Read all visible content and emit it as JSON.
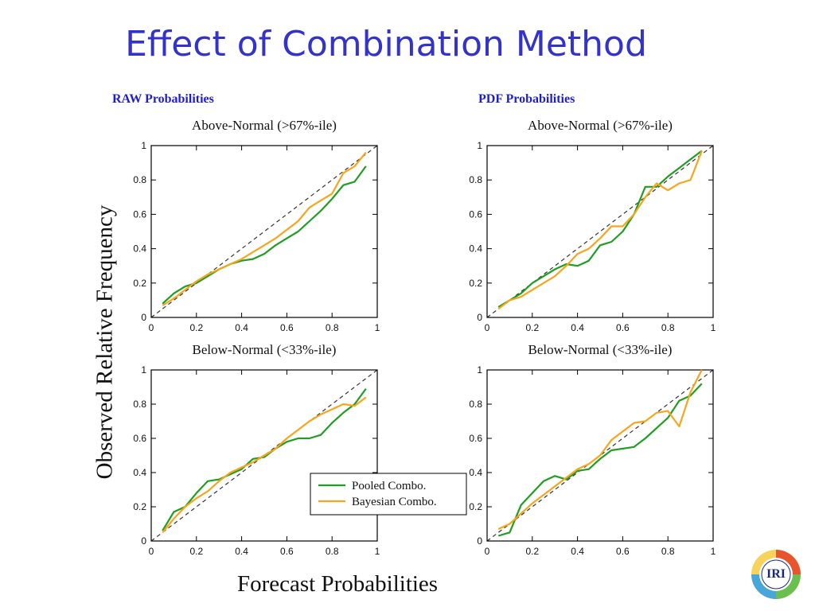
{
  "slide": {
    "title": "Effect of Combination Method"
  },
  "sections": {
    "left": "RAW Probabilities",
    "right": "PDF Probabilities"
  },
  "axes_labels": {
    "y": "Observed Relative Frequency",
    "x": "Forecast Probabilities"
  },
  "legend": {
    "pooled": "Pooled Combo.",
    "bayesian": "Bayesian Combo."
  },
  "colors": {
    "pooled": "#1f9e22",
    "bayesian": "#f7a51c",
    "diagonal": "#333333",
    "title": "#3333cc"
  },
  "logo": {
    "text": "IRI"
  },
  "chart_data": [
    {
      "type": "line",
      "title": "Above-Normal (>67%-ile)",
      "panel": "RAW Probabilities",
      "xlim": [
        0,
        1
      ],
      "ylim": [
        0,
        1
      ],
      "xticks": [
        "0",
        "0.2",
        "0.4",
        "0.6",
        "0.8",
        "1"
      ],
      "yticks": [
        "0",
        "0.2",
        "0.4",
        "0.6",
        "0.8",
        "1"
      ],
      "series": [
        {
          "name": "Pooled Combo.",
          "x": [
            0.05,
            0.1,
            0.15,
            0.2,
            0.25,
            0.3,
            0.35,
            0.4,
            0.45,
            0.5,
            0.55,
            0.6,
            0.65,
            0.7,
            0.75,
            0.8,
            0.85,
            0.9,
            0.95
          ],
          "y": [
            0.08,
            0.14,
            0.18,
            0.2,
            0.24,
            0.28,
            0.31,
            0.33,
            0.34,
            0.37,
            0.42,
            0.46,
            0.5,
            0.56,
            0.62,
            0.69,
            0.77,
            0.79,
            0.88
          ]
        },
        {
          "name": "Bayesian Combo.",
          "x": [
            0.05,
            0.1,
            0.15,
            0.2,
            0.25,
            0.3,
            0.35,
            0.4,
            0.45,
            0.5,
            0.55,
            0.6,
            0.65,
            0.7,
            0.75,
            0.8,
            0.85,
            0.9,
            0.95
          ],
          "y": [
            0.07,
            0.11,
            0.16,
            0.21,
            0.25,
            0.28,
            0.31,
            0.34,
            0.38,
            0.42,
            0.46,
            0.51,
            0.56,
            0.64,
            0.68,
            0.72,
            0.84,
            0.88,
            0.96
          ]
        }
      ]
    },
    {
      "type": "line",
      "title": "Above-Normal (>67%-ile)",
      "panel": "PDF Probabilities",
      "xlim": [
        0,
        1
      ],
      "ylim": [
        0,
        1
      ],
      "xticks": [
        "0",
        "0.2",
        "0.4",
        "0.6",
        "0.8",
        "1"
      ],
      "yticks": [
        "0",
        "0.2",
        "0.4",
        "0.6",
        "0.8",
        "1"
      ],
      "series": [
        {
          "name": "Pooled Combo.",
          "x": [
            0.05,
            0.1,
            0.15,
            0.2,
            0.25,
            0.3,
            0.35,
            0.4,
            0.45,
            0.5,
            0.55,
            0.6,
            0.65,
            0.7,
            0.75,
            0.8,
            0.85,
            0.9,
            0.95
          ],
          "y": [
            0.06,
            0.1,
            0.14,
            0.2,
            0.24,
            0.28,
            0.31,
            0.3,
            0.33,
            0.42,
            0.44,
            0.5,
            0.6,
            0.76,
            0.76,
            0.82,
            0.87,
            0.92,
            0.97
          ]
        },
        {
          "name": "Bayesian Combo.",
          "x": [
            0.05,
            0.1,
            0.15,
            0.2,
            0.25,
            0.3,
            0.35,
            0.4,
            0.45,
            0.5,
            0.55,
            0.6,
            0.65,
            0.7,
            0.75,
            0.8,
            0.85,
            0.9,
            0.95
          ],
          "y": [
            0.05,
            0.1,
            0.12,
            0.16,
            0.2,
            0.24,
            0.3,
            0.37,
            0.4,
            0.46,
            0.53,
            0.53,
            0.6,
            0.7,
            0.78,
            0.74,
            0.78,
            0.8,
            0.97
          ]
        }
      ]
    },
    {
      "type": "line",
      "title": "Below-Normal (<33%-ile)",
      "panel": "RAW Probabilities",
      "xlim": [
        0,
        1
      ],
      "ylim": [
        0,
        1
      ],
      "xticks": [
        "0",
        "0.2",
        "0.4",
        "0.6",
        "0.8",
        "1"
      ],
      "yticks": [
        "0",
        "0.2",
        "0.4",
        "0.6",
        "0.8",
        "1"
      ],
      "series": [
        {
          "name": "Pooled Combo.",
          "x": [
            0.05,
            0.1,
            0.15,
            0.2,
            0.25,
            0.3,
            0.35,
            0.4,
            0.45,
            0.5,
            0.55,
            0.6,
            0.65,
            0.7,
            0.75,
            0.8,
            0.85,
            0.9,
            0.95
          ],
          "y": [
            0.06,
            0.17,
            0.2,
            0.28,
            0.35,
            0.36,
            0.39,
            0.42,
            0.48,
            0.49,
            0.54,
            0.58,
            0.6,
            0.6,
            0.62,
            0.69,
            0.75,
            0.8,
            0.89
          ]
        },
        {
          "name": "Bayesian Combo.",
          "x": [
            0.05,
            0.1,
            0.15,
            0.2,
            0.25,
            0.3,
            0.35,
            0.4,
            0.45,
            0.5,
            0.55,
            0.6,
            0.65,
            0.7,
            0.75,
            0.8,
            0.85,
            0.9,
            0.95
          ],
          "y": [
            0.05,
            0.13,
            0.2,
            0.25,
            0.29,
            0.35,
            0.4,
            0.43,
            0.46,
            0.5,
            0.54,
            0.6,
            0.65,
            0.7,
            0.74,
            0.77,
            0.8,
            0.79,
            0.84
          ]
        }
      ]
    },
    {
      "type": "line",
      "title": "Below-Normal (<33%-ile)",
      "panel": "PDF Probabilities",
      "xlim": [
        0,
        1
      ],
      "ylim": [
        0,
        1
      ],
      "xticks": [
        "0",
        "0.2",
        "0.4",
        "0.6",
        "0.8",
        "1"
      ],
      "yticks": [
        "0",
        "0.2",
        "0.4",
        "0.6",
        "0.8",
        "1"
      ],
      "series": [
        {
          "name": "Pooled Combo.",
          "x": [
            0.05,
            0.1,
            0.15,
            0.2,
            0.25,
            0.3,
            0.35,
            0.4,
            0.45,
            0.5,
            0.55,
            0.65,
            0.7,
            0.75,
            0.8,
            0.85,
            0.9,
            0.95
          ],
          "y": [
            0.03,
            0.05,
            0.21,
            0.28,
            0.35,
            0.38,
            0.36,
            0.41,
            0.42,
            0.48,
            0.53,
            0.55,
            0.6,
            0.66,
            0.72,
            0.82,
            0.85,
            0.92
          ]
        },
        {
          "name": "Bayesian Combo.",
          "x": [
            0.05,
            0.1,
            0.15,
            0.2,
            0.25,
            0.3,
            0.35,
            0.4,
            0.45,
            0.5,
            0.55,
            0.6,
            0.65,
            0.7,
            0.75,
            0.8,
            0.85,
            0.9,
            0.95
          ],
          "y": [
            0.07,
            0.1,
            0.16,
            0.22,
            0.27,
            0.32,
            0.37,
            0.42,
            0.45,
            0.5,
            0.59,
            0.64,
            0.69,
            0.7,
            0.75,
            0.76,
            0.67,
            0.87,
            1.0
          ]
        }
      ]
    }
  ]
}
